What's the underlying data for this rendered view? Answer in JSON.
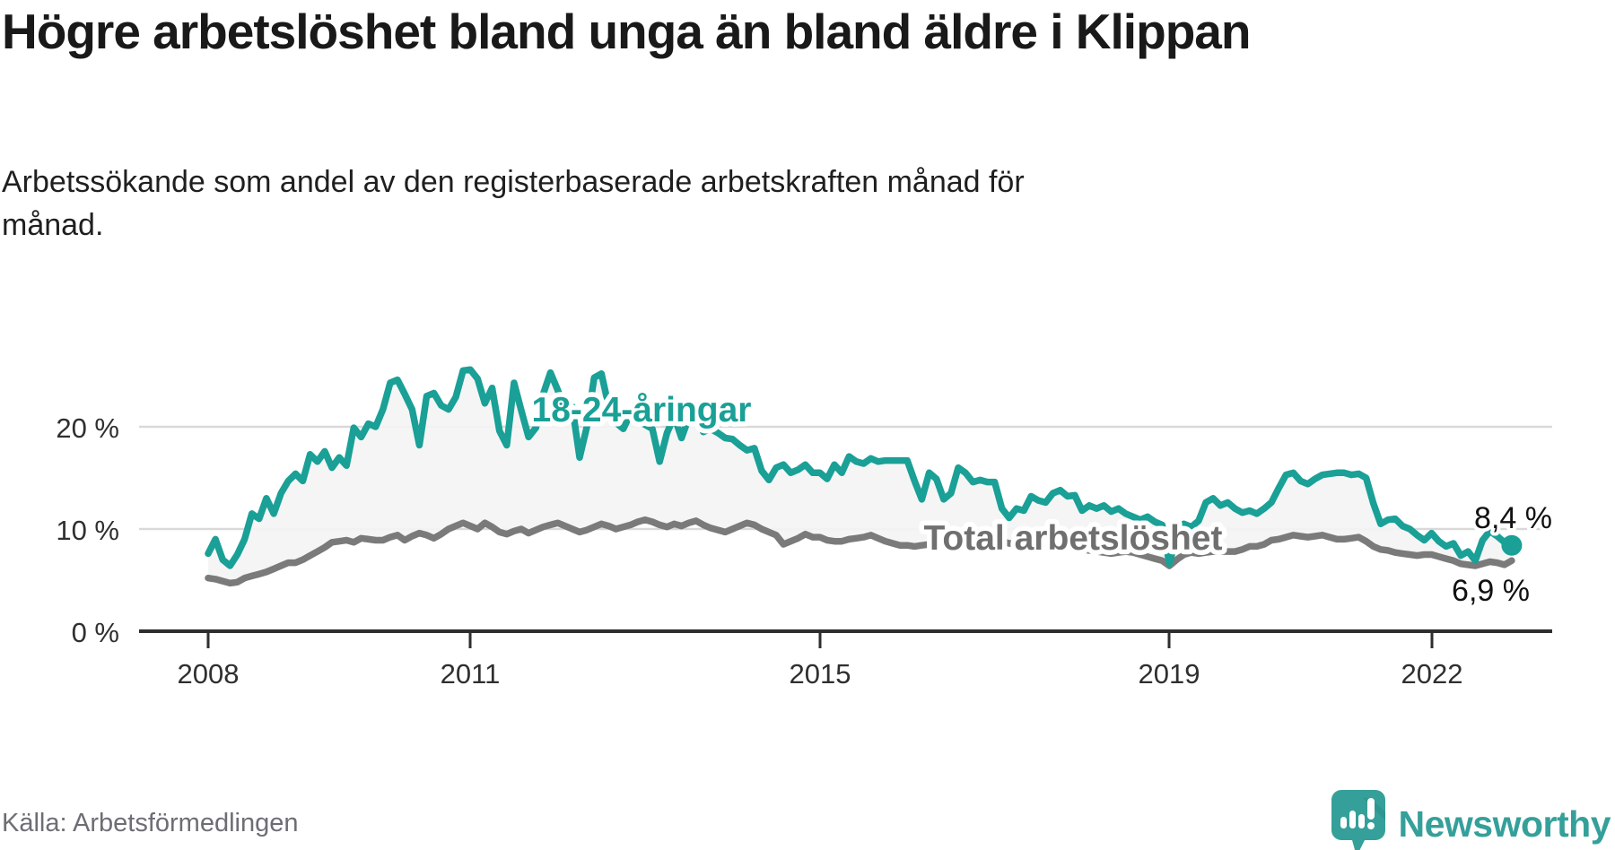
{
  "header": {
    "title": "Högre arbetslöshet bland unga än bland äldre i Klippan",
    "subtitle": "Arbetssökande som andel av den registerbaserade arbetskraften månad för månad."
  },
  "footer": {
    "source": "Källa: Arbetsförmedlingen",
    "brand": "Newsworthy",
    "brand_color": "#35a09a"
  },
  "chart_data": {
    "type": "line",
    "title": "Högre arbetslöshet bland unga än bland äldre i Klippan",
    "subtitle": "Arbetssökande som andel av den registerbaserade arbetskraften månad för månad.",
    "unit": "%",
    "frequency": "monthly",
    "x_start_year": 2008,
    "x_end_year": 2022,
    "x_ticks": [
      "2008",
      "2011",
      "2015",
      "2019",
      "2022"
    ],
    "y_ticks": [
      "0 %",
      "10 %",
      "20 %"
    ],
    "ylim": [
      0,
      27
    ],
    "grid": "horizontal",
    "legend_position": "inline-labels",
    "fill_between_color": "#f4f4f4",
    "gridline_color": "#d9d9d9",
    "axis_color": "#2e2e2e",
    "series": [
      {
        "name": "18-24-åringar",
        "color": "#1aa096",
        "end_label": "8,4 %",
        "end_value": 8.4,
        "values": [
          7.6,
          9.0,
          7.0,
          6.4,
          7.5,
          9.0,
          11.5,
          11.0,
          13.0,
          11.5,
          13.5,
          14.7,
          15.4,
          14.7,
          17.3,
          16.6,
          17.6,
          16.0,
          17.0,
          16.2,
          19.9,
          19.0,
          20.3,
          20.0,
          21.7,
          24.3,
          24.6,
          23.2,
          21.7,
          18.2,
          23.0,
          23.3,
          22.1,
          21.7,
          22.9,
          25.5,
          25.6,
          24.7,
          22.3,
          23.8,
          19.6,
          18.2,
          24.3,
          21.6,
          19.0,
          19.9,
          23.2,
          25.3,
          23.6,
          21.7,
          22.0,
          17.0,
          20.0,
          24.8,
          25.2,
          22.0,
          20.4,
          19.8,
          21.3,
          20.6,
          20.2,
          19.8,
          16.6,
          19.4,
          21.0,
          18.9,
          20.9,
          21.4,
          19.5,
          19.8,
          19.4,
          18.9,
          18.8,
          18.2,
          17.7,
          17.9,
          15.7,
          14.8,
          16.0,
          16.3,
          15.5,
          15.8,
          16.3,
          15.5,
          15.5,
          14.9,
          16.3,
          15.5,
          17.1,
          16.6,
          16.4,
          16.9,
          16.6,
          16.7,
          16.7,
          16.7,
          16.7,
          14.7,
          12.9,
          15.5,
          14.9,
          12.9,
          13.5,
          16.0,
          15.5,
          14.6,
          14.8,
          14.6,
          14.6,
          12.0,
          11.1,
          12.0,
          11.8,
          13.2,
          12.8,
          12.6,
          13.5,
          13.8,
          13.2,
          13.3,
          11.8,
          12.3,
          12.0,
          12.3,
          11.7,
          12.0,
          11.5,
          11.2,
          10.9,
          11.2,
          10.7,
          10.4,
          6.6,
          9.5,
          10.5,
          10.2,
          10.8,
          12.6,
          13.0,
          12.3,
          12.6,
          12.0,
          11.6,
          11.8,
          11.5,
          12.0,
          12.6,
          14.0,
          15.3,
          15.5,
          14.7,
          14.4,
          14.9,
          15.3,
          15.4,
          15.5,
          15.5,
          15.3,
          15.4,
          15.0,
          12.5,
          10.5,
          10.9,
          11.0,
          10.3,
          10.0,
          9.4,
          8.9,
          9.6,
          8.8,
          8.3,
          8.6,
          7.4,
          7.8,
          6.9,
          8.9,
          9.8,
          9.3,
          8.7,
          8.4
        ]
      },
      {
        "name": "Total arbetslöshet",
        "color": "#7a7a7a",
        "end_label": "6,9 %",
        "end_value": 6.9,
        "values": [
          5.2,
          5.1,
          4.9,
          4.7,
          4.8,
          5.2,
          5.4,
          5.6,
          5.8,
          6.1,
          6.4,
          6.7,
          6.7,
          7.0,
          7.4,
          7.8,
          8.2,
          8.7,
          8.8,
          8.9,
          8.7,
          9.1,
          9.0,
          8.9,
          8.9,
          9.2,
          9.4,
          8.9,
          9.3,
          9.6,
          9.4,
          9.1,
          9.5,
          10.0,
          10.3,
          10.6,
          10.3,
          10.0,
          10.6,
          10.2,
          9.7,
          9.5,
          9.8,
          10.0,
          9.6,
          9.9,
          10.2,
          10.4,
          10.6,
          10.3,
          10.0,
          9.7,
          9.9,
          10.2,
          10.5,
          10.3,
          10.0,
          10.2,
          10.4,
          10.7,
          10.9,
          10.7,
          10.4,
          10.2,
          10.5,
          10.3,
          10.6,
          10.8,
          10.4,
          10.1,
          9.9,
          9.7,
          10.0,
          10.3,
          10.6,
          10.4,
          10.0,
          9.7,
          9.4,
          8.5,
          8.8,
          9.1,
          9.5,
          9.2,
          9.2,
          8.9,
          8.8,
          8.8,
          9.0,
          9.1,
          9.2,
          9.4,
          9.1,
          8.8,
          8.6,
          8.4,
          8.4,
          8.3,
          8.4,
          8.5,
          8.6,
          8.9,
          9.0,
          9.1,
          9.1,
          9.0,
          8.9,
          9.0,
          9.0,
          8.8,
          8.6,
          8.5,
          8.4,
          8.5,
          8.6,
          8.5,
          8.4,
          8.3,
          8.2,
          8.1,
          8.0,
          7.9,
          7.8,
          7.7,
          7.6,
          7.7,
          7.8,
          7.7,
          7.5,
          7.3,
          7.1,
          6.9,
          6.4,
          7.0,
          7.5,
          7.7,
          7.6,
          7.7,
          7.8,
          7.8,
          7.8,
          7.8,
          8.0,
          8.3,
          8.3,
          8.5,
          8.9,
          9.0,
          9.2,
          9.4,
          9.3,
          9.2,
          9.3,
          9.4,
          9.2,
          9.0,
          9.0,
          9.1,
          9.2,
          8.8,
          8.3,
          8.0,
          7.9,
          7.7,
          7.6,
          7.5,
          7.4,
          7.5,
          7.5,
          7.3,
          7.1,
          6.9,
          6.6,
          6.5,
          6.4,
          6.6,
          6.8,
          6.7,
          6.5,
          6.9
        ]
      }
    ]
  }
}
